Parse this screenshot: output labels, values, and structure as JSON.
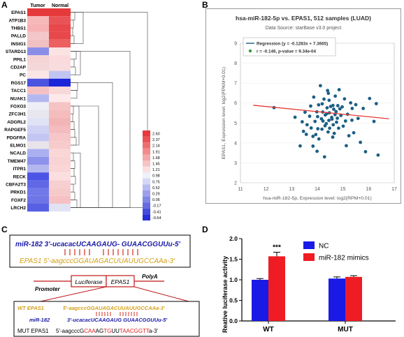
{
  "panels": {
    "A": {
      "letter": "A",
      "columns": [
        "Tumor",
        "Normal"
      ],
      "genes": [
        "EPAS1",
        "ATP1B3",
        "THBS1",
        "PALLD",
        "INSIG1",
        "STARD13",
        "PPIL1",
        "CD2AP",
        "PC",
        "RGS17",
        "TACC1",
        "NUAK1",
        "FOXO3",
        "ZFC3H1",
        "ADGRL2",
        "RAPGEF5",
        "PDGFRA",
        "ELMO1",
        "NCALD",
        "TMEM47",
        "ITPR1",
        "RECK",
        "CBFA2T3",
        "PRKD1",
        "FOXF2",
        "LRCH2"
      ],
      "tumor_colors": [
        "#e6393c",
        "#f7b8ba",
        "#f7b2b4",
        "#f3c7c9",
        "#f1c0c2",
        "#8a8ee8",
        "#f6d3d4",
        "#f4d8d9",
        "#fbe6e6",
        "#4b53e0",
        "#f5c0c2",
        "#b4b8f0",
        "#eeeef6",
        "#e8e6ef",
        "#e0e2f6",
        "#cfd2f4",
        "#c3c6f2",
        "#e9e3ea",
        "#aab0f0",
        "#8d92ea",
        "#b4b7ef",
        "#4b54e4",
        "#6068e6",
        "#7178e8",
        "#6e75e6",
        "#575fe3"
      ],
      "normal_colors": [
        "#e6393c",
        "#ea5355",
        "#e8484a",
        "#e8484a",
        "#ec6062",
        "#fbe3e4",
        "#fadadc",
        "#f9dcdd",
        "#c1c4f2",
        "#1c24d8",
        "#f9d8d9",
        "#fde9e9",
        "#f6c3c5",
        "#f5bcbe",
        "#f3b4b6",
        "#f4bcbe",
        "#f6c6c8",
        "#f7cbcc",
        "#fad6d7",
        "#f9d2d3",
        "#fad6d7",
        "#fbdee0",
        "#f8cfd1",
        "#f6c9cb",
        "#f6c1c3",
        "#e1e3f5"
      ],
      "legend": {
        "labels": [
          "2.60",
          "2.37",
          "2.14",
          "1.91",
          "1.68",
          "1.45",
          "1.21",
          "0.98",
          "0.75",
          "0.52",
          "0.29",
          "0.06",
          "-0.17",
          "-0.41",
          "-0.64"
        ],
        "colors": [
          "#e6393c",
          "#ec5254",
          "#ef6d70",
          "#f28a8c",
          "#f5a6a8",
          "#f8c3c4",
          "#fbe0e0",
          "#eef0fa",
          "#d4d6f5",
          "#b8bbf0",
          "#9ca0eb",
          "#8087e6",
          "#646ae2",
          "#454cdc",
          "#262ed6"
        ]
      }
    },
    "B": {
      "letter": "B",
      "title": "hsa-miR-182-5p vs. EPAS1, 512 samples (LUAD)",
      "subtitle": "Data Source: starBase v3.0 project",
      "legend_regression": "Regression (y = -0.1283x + 7.3665)",
      "legend_stat": "r = -0.146, p-value = 9.34e-04",
      "ylabel": "EPAS1, Expression level: log2(FPKM+0.01)",
      "xlabel": "hsa-miR-182-5p, Expression level: log2(RPM+0.01)",
      "regression_color": "#e53935",
      "point_color": "#1b5f85"
    },
    "C": {
      "letter": "C",
      "box1_line1": "miR-182 3'-ucacacUCAAGAUG- GUAACGGUUu-5'",
      "box1_line2": "EPAS1 5'-aagcccGGAUAGACUUAUUGCCAAa-3'",
      "promoter": "Promoter",
      "luciferase": "Luciferase",
      "epas1_box": "EPAS1",
      "polya": "PolyA",
      "wt_label": "WT EPAS1",
      "wt_seq": "5'-aagcccGGAUAGACUUAUUGCCAAa-3'",
      "mir_label": "miR-182",
      "mir_seq": "3'-ucacacUCAAGAUG GUAACGGUUu-5'",
      "mut_label": "MUT EPAS1",
      "mut_seq_parts": [
        "5'-aagcccG",
        "CAA",
        "AG",
        "TG",
        "UU",
        "TAACGGTT",
        "a-3'"
      ]
    },
    "D": {
      "letter": "D",
      "ylabel": "Reative luciferase activity",
      "significance": "***",
      "colors": {
        "NC": "#1a1ae6",
        "mimics": "#ef1c24"
      }
    }
  },
  "chart_data": {
    "type": "bar",
    "categories": [
      "WT",
      "MUT"
    ],
    "series": [
      {
        "name": "NC",
        "values": [
          1.0,
          1.03
        ],
        "errors": [
          0.03,
          0.04
        ]
      },
      {
        "name": "miR-182 mimics",
        "values": [
          1.57,
          1.07
        ],
        "errors": [
          0.1,
          0.03
        ]
      }
    ],
    "ylim": [
      0.0,
      2.0
    ],
    "yticks": [
      "0.0",
      "0.5",
      "1.0",
      "1.5",
      "2.0"
    ],
    "ylabel": "Reative luciferase activity",
    "legend_position": "top-right"
  },
  "scatter_data": {
    "type": "scatter",
    "xlim": [
      11,
      17
    ],
    "ylim": [
      2,
      9
    ],
    "xticks": [
      "11",
      "12",
      "13",
      "14",
      "15",
      "16",
      "17"
    ],
    "yticks": [
      "2",
      "3",
      "4",
      "5",
      "6",
      "7",
      "8",
      "9"
    ],
    "regression": {
      "slope": -0.1283,
      "intercept": 7.3665
    },
    "points": [
      [
        12.31,
        5.77
      ],
      [
        13.13,
        5.29
      ],
      [
        13.33,
        3.85
      ],
      [
        13.41,
        5.06
      ],
      [
        13.46,
        4.58
      ],
      [
        13.52,
        5.54
      ],
      [
        13.57,
        4.43
      ],
      [
        13.6,
        4.91
      ],
      [
        13.7,
        5.34
      ],
      [
        13.74,
        5.85
      ],
      [
        13.76,
        4.75
      ],
      [
        13.83,
        3.84
      ],
      [
        13.83,
        4.33
      ],
      [
        13.86,
        6.3
      ],
      [
        13.91,
        5.08
      ],
      [
        13.98,
        5.56
      ],
      [
        13.99,
        3.58
      ],
      [
        14.01,
        5.32
      ],
      [
        14.02,
        4.71
      ],
      [
        14.06,
        4.2
      ],
      [
        14.12,
        6.87
      ],
      [
        14.16,
        5.21
      ],
      [
        14.18,
        4.69
      ],
      [
        14.19,
        5.96
      ],
      [
        14.21,
        5.55
      ],
      [
        14.22,
        5.1
      ],
      [
        14.26,
        6.2
      ],
      [
        14.3,
        4.86
      ],
      [
        14.31,
        5.4
      ],
      [
        14.37,
        5.47
      ],
      [
        14.38,
        5.76
      ],
      [
        14.4,
        6.63
      ],
      [
        14.42,
        4.55
      ],
      [
        14.45,
        5.13
      ],
      [
        14.46,
        6.14
      ],
      [
        14.47,
        5.51
      ],
      [
        14.48,
        4.74
      ],
      [
        14.52,
        5.83
      ],
      [
        14.56,
        5.28
      ],
      [
        14.57,
        5.19
      ],
      [
        14.61,
        5.88
      ],
      [
        14.62,
        4.91
      ],
      [
        14.64,
        5.69
      ],
      [
        14.66,
        4.48
      ],
      [
        14.69,
        5.42
      ],
      [
        14.7,
        6.35
      ],
      [
        14.75,
        5.04
      ],
      [
        14.78,
        5.24
      ],
      [
        14.8,
        5.87
      ],
      [
        14.83,
        4.74
      ],
      [
        14.85,
        6.67
      ],
      [
        14.88,
        5.71
      ],
      [
        14.92,
        5.38
      ],
      [
        14.97,
        5.81
      ],
      [
        15.01,
        4.84
      ],
      [
        15.06,
        6.21
      ],
      [
        15.1,
        5.1
      ],
      [
        15.13,
        3.86
      ],
      [
        15.18,
        5.44
      ],
      [
        15.23,
        4.36
      ],
      [
        15.3,
        6.01
      ],
      [
        15.35,
        5.14
      ],
      [
        15.42,
        4.51
      ],
      [
        15.5,
        5.92
      ],
      [
        15.59,
        5.23
      ],
      [
        15.68,
        4.03
      ],
      [
        15.79,
        5.73
      ],
      [
        15.88,
        3.56
      ],
      [
        16.04,
        6.23
      ],
      [
        16.21,
        5.08
      ],
      [
        16.3,
        5.97
      ],
      [
        16.37,
        3.39
      ],
      [
        14.05,
        5.91
      ],
      [
        14.35,
        4.97
      ],
      [
        14.28,
        3.3
      ],
      [
        14.73,
        5.57
      ],
      [
        13.94,
        4.42
      ],
      [
        14.43,
        6.49
      ],
      [
        14.6,
        4.29
      ],
      [
        15.36,
        5.73
      ]
    ]
  }
}
